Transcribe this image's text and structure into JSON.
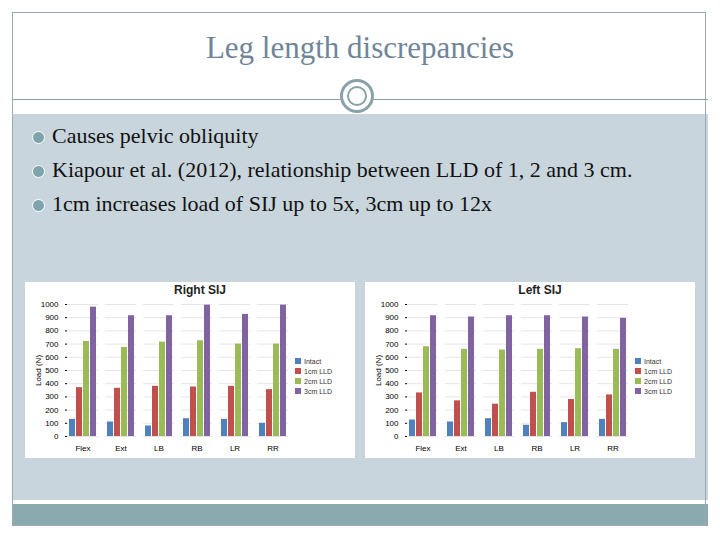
{
  "title": "Leg length discrepancies",
  "bullets": [
    "Causes pelvic obliquity",
    "Kiapour et al. (2012), relationship between LLD of 1, 2 and 3 cm.",
    "1cm increases load of SIJ up to 5x,  3cm up to 12x"
  ],
  "chart_data": [
    {
      "type": "bar",
      "title": "Right SIJ",
      "y_label": "Load (N)",
      "categories": [
        "Flex",
        "Ext",
        "LB",
        "RB",
        "LR",
        "RR"
      ],
      "series": [
        {
          "name": "Intact",
          "color": "#4f81bd",
          "values": [
            130,
            110,
            80,
            135,
            130,
            100
          ]
        },
        {
          "name": "1cm LLD",
          "color": "#c0504d",
          "values": [
            370,
            365,
            380,
            375,
            380,
            355
          ]
        },
        {
          "name": "2cm LLD",
          "color": "#9bbb59",
          "values": [
            720,
            675,
            715,
            725,
            700,
            700
          ]
        },
        {
          "name": "3cm LLD",
          "color": "#8064a2",
          "values": [
            980,
            915,
            915,
            995,
            925,
            995
          ]
        }
      ],
      "ylim": [
        0,
        1000
      ],
      "yticks": [
        0,
        100,
        200,
        300,
        400,
        500,
        600,
        700,
        800,
        900,
        1000
      ],
      "grid": true,
      "legend": "right"
    },
    {
      "type": "bar",
      "title": "Left SIJ",
      "y_label": "Load (N)",
      "categories": [
        "Flex",
        "Ext",
        "LB",
        "RB",
        "LR",
        "RR"
      ],
      "series": [
        {
          "name": "Intact",
          "color": "#4f81bd",
          "values": [
            125,
            110,
            135,
            85,
            105,
            130
          ]
        },
        {
          "name": "1cm LLD",
          "color": "#c0504d",
          "values": [
            330,
            270,
            245,
            335,
            280,
            315
          ]
        },
        {
          "name": "2cm LLD",
          "color": "#9bbb59",
          "values": [
            680,
            660,
            655,
            660,
            665,
            660
          ]
        },
        {
          "name": "3cm LLD",
          "color": "#8064a2",
          "values": [
            915,
            905,
            915,
            915,
            905,
            895
          ]
        }
      ],
      "ylim": [
        0,
        1000
      ],
      "yticks": [
        0,
        100,
        200,
        300,
        400,
        500,
        600,
        700,
        800,
        900,
        1000
      ],
      "grid": true,
      "legend": "right"
    }
  ]
}
